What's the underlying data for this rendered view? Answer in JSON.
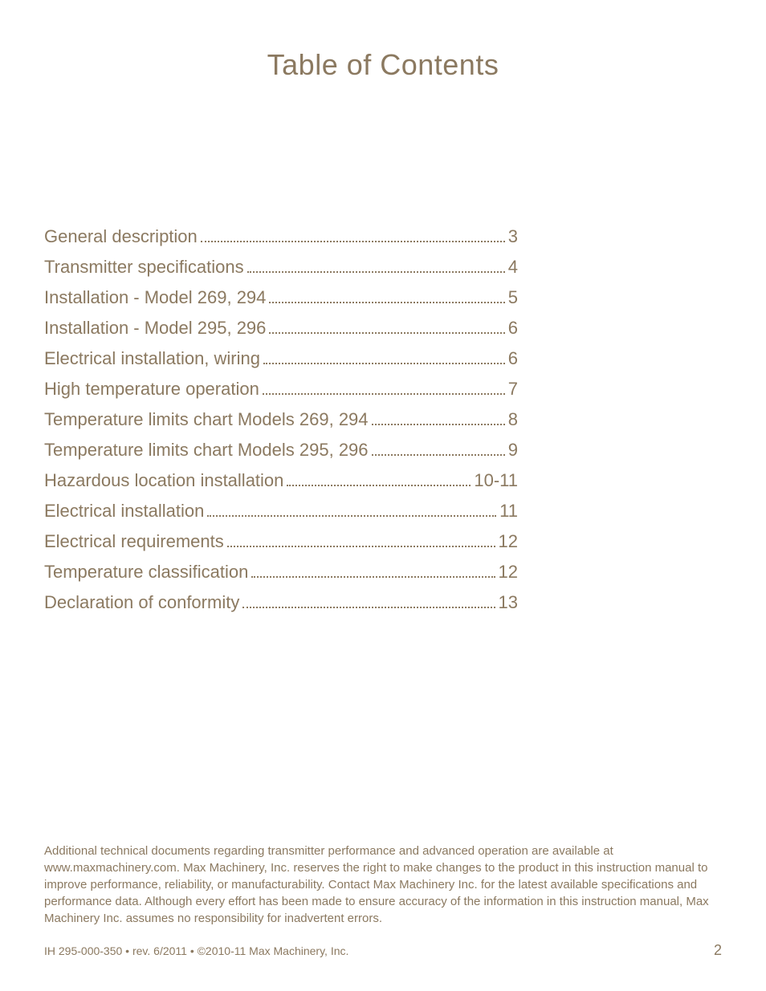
{
  "title": "Table of Contents",
  "toc": [
    {
      "label": "General description",
      "page": "3"
    },
    {
      "label": "Transmitter specifications",
      "page": "4"
    },
    {
      "label": "Installation - Model 269, 294",
      "page": "5"
    },
    {
      "label": "Installation - Model 295, 296",
      "page": "6"
    },
    {
      "label": "Electrical installation, wiring",
      "page": "6"
    },
    {
      "label": "High temperature operation",
      "page": "7"
    },
    {
      "label": "Temperature limits chart Models 269, 294",
      "page": "8"
    },
    {
      "label": "Temperature limits chart Models 295, 296",
      "page": "9"
    },
    {
      "label": "Hazardous location installation",
      "page": "10-11"
    },
    {
      "label": "Electrical installation",
      "page": "11"
    },
    {
      "label": "Electrical requirements",
      "page": "12"
    },
    {
      "label": "Temperature classification",
      "page": "12"
    },
    {
      "label": "Declaration of conformity",
      "page": "13"
    }
  ],
  "disclaimer": "Additional technical documents regarding transmitter performance and advanced operation are available at www.maxmachinery.com. Max Machinery, Inc. reserves the right to make changes to the product in this instruction manual to improve performance, reliability, or manufacturability. Contact Max Machinery Inc. for the latest available specifications and performance data. Although every effort has been made to ensure accuracy of the information in this instruction manual, Max Machinery Inc. assumes no responsibility for inadvertent errors.",
  "footer": {
    "left": "IH 295-000-350 • rev. 6/2011 • ©2010-11 Max Machinery, Inc.",
    "page_number": "2"
  },
  "colors": {
    "text": "#8b7960",
    "background": "#ffffff"
  },
  "typography": {
    "title_fontsize": 36,
    "toc_fontsize": 22,
    "disclaimer_fontsize": 15,
    "footer_fontsize": 14
  }
}
